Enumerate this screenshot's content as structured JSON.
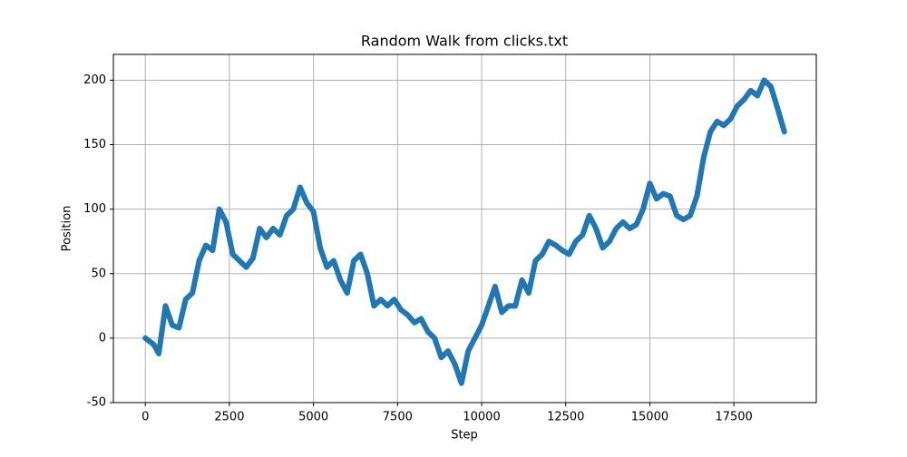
{
  "chart_data": {
    "type": "line",
    "title": "Random Walk from clicks.txt",
    "x_label": "Step",
    "y_label": "Position",
    "x": [
      0,
      250,
      400,
      600,
      800,
      1000,
      1200,
      1400,
      1600,
      1800,
      2000,
      2200,
      2400,
      2600,
      2800,
      3000,
      3200,
      3400,
      3600,
      3800,
      4000,
      4200,
      4400,
      4600,
      4800,
      5000,
      5200,
      5400,
      5600,
      5800,
      6000,
      6200,
      6400,
      6600,
      6800,
      7000,
      7200,
      7400,
      7600,
      7800,
      8000,
      8200,
      8400,
      8600,
      8800,
      9000,
      9200,
      9400,
      9600,
      9800,
      10000,
      10200,
      10400,
      10600,
      10800,
      11000,
      11200,
      11400,
      11600,
      11800,
      12000,
      12200,
      12400,
      12600,
      12800,
      13000,
      13200,
      13400,
      13600,
      13800,
      14000,
      14200,
      14400,
      14600,
      14800,
      15000,
      15200,
      15400,
      15600,
      15800,
      16000,
      16200,
      16400,
      16600,
      16800,
      17000,
      17200,
      17400,
      17600,
      17800,
      18000,
      18200,
      18400,
      18600,
      18800,
      19000
    ],
    "series": [
      {
        "name": "Position",
        "color": "#1f77b4",
        "values": [
          0,
          -5,
          -12,
          25,
          10,
          8,
          30,
          35,
          60,
          72,
          68,
          100,
          90,
          65,
          60,
          55,
          62,
          85,
          78,
          85,
          80,
          95,
          100,
          117,
          105,
          98,
          70,
          55,
          60,
          45,
          35,
          60,
          65,
          50,
          25,
          30,
          25,
          30,
          22,
          18,
          12,
          15,
          5,
          0,
          -15,
          -10,
          -20,
          -35,
          -10,
          0,
          10,
          25,
          40,
          20,
          25,
          25,
          45,
          35,
          60,
          65,
          75,
          72,
          68,
          65,
          75,
          80,
          95,
          85,
          70,
          75,
          85,
          90,
          85,
          88,
          100,
          120,
          108,
          112,
          110,
          95,
          92,
          95,
          110,
          140,
          160,
          168,
          165,
          170,
          180,
          185,
          192,
          188,
          200,
          195,
          178,
          160
        ]
      }
    ],
    "xlim": [
      -950,
      19950
    ],
    "xticks": [
      0,
      2500,
      5000,
      7500,
      10000,
      12500,
      15000,
      17500
    ],
    "ylim": [
      -50,
      220
    ],
    "yticks": [
      -50,
      0,
      50,
      100,
      150,
      200
    ],
    "grid": true
  }
}
